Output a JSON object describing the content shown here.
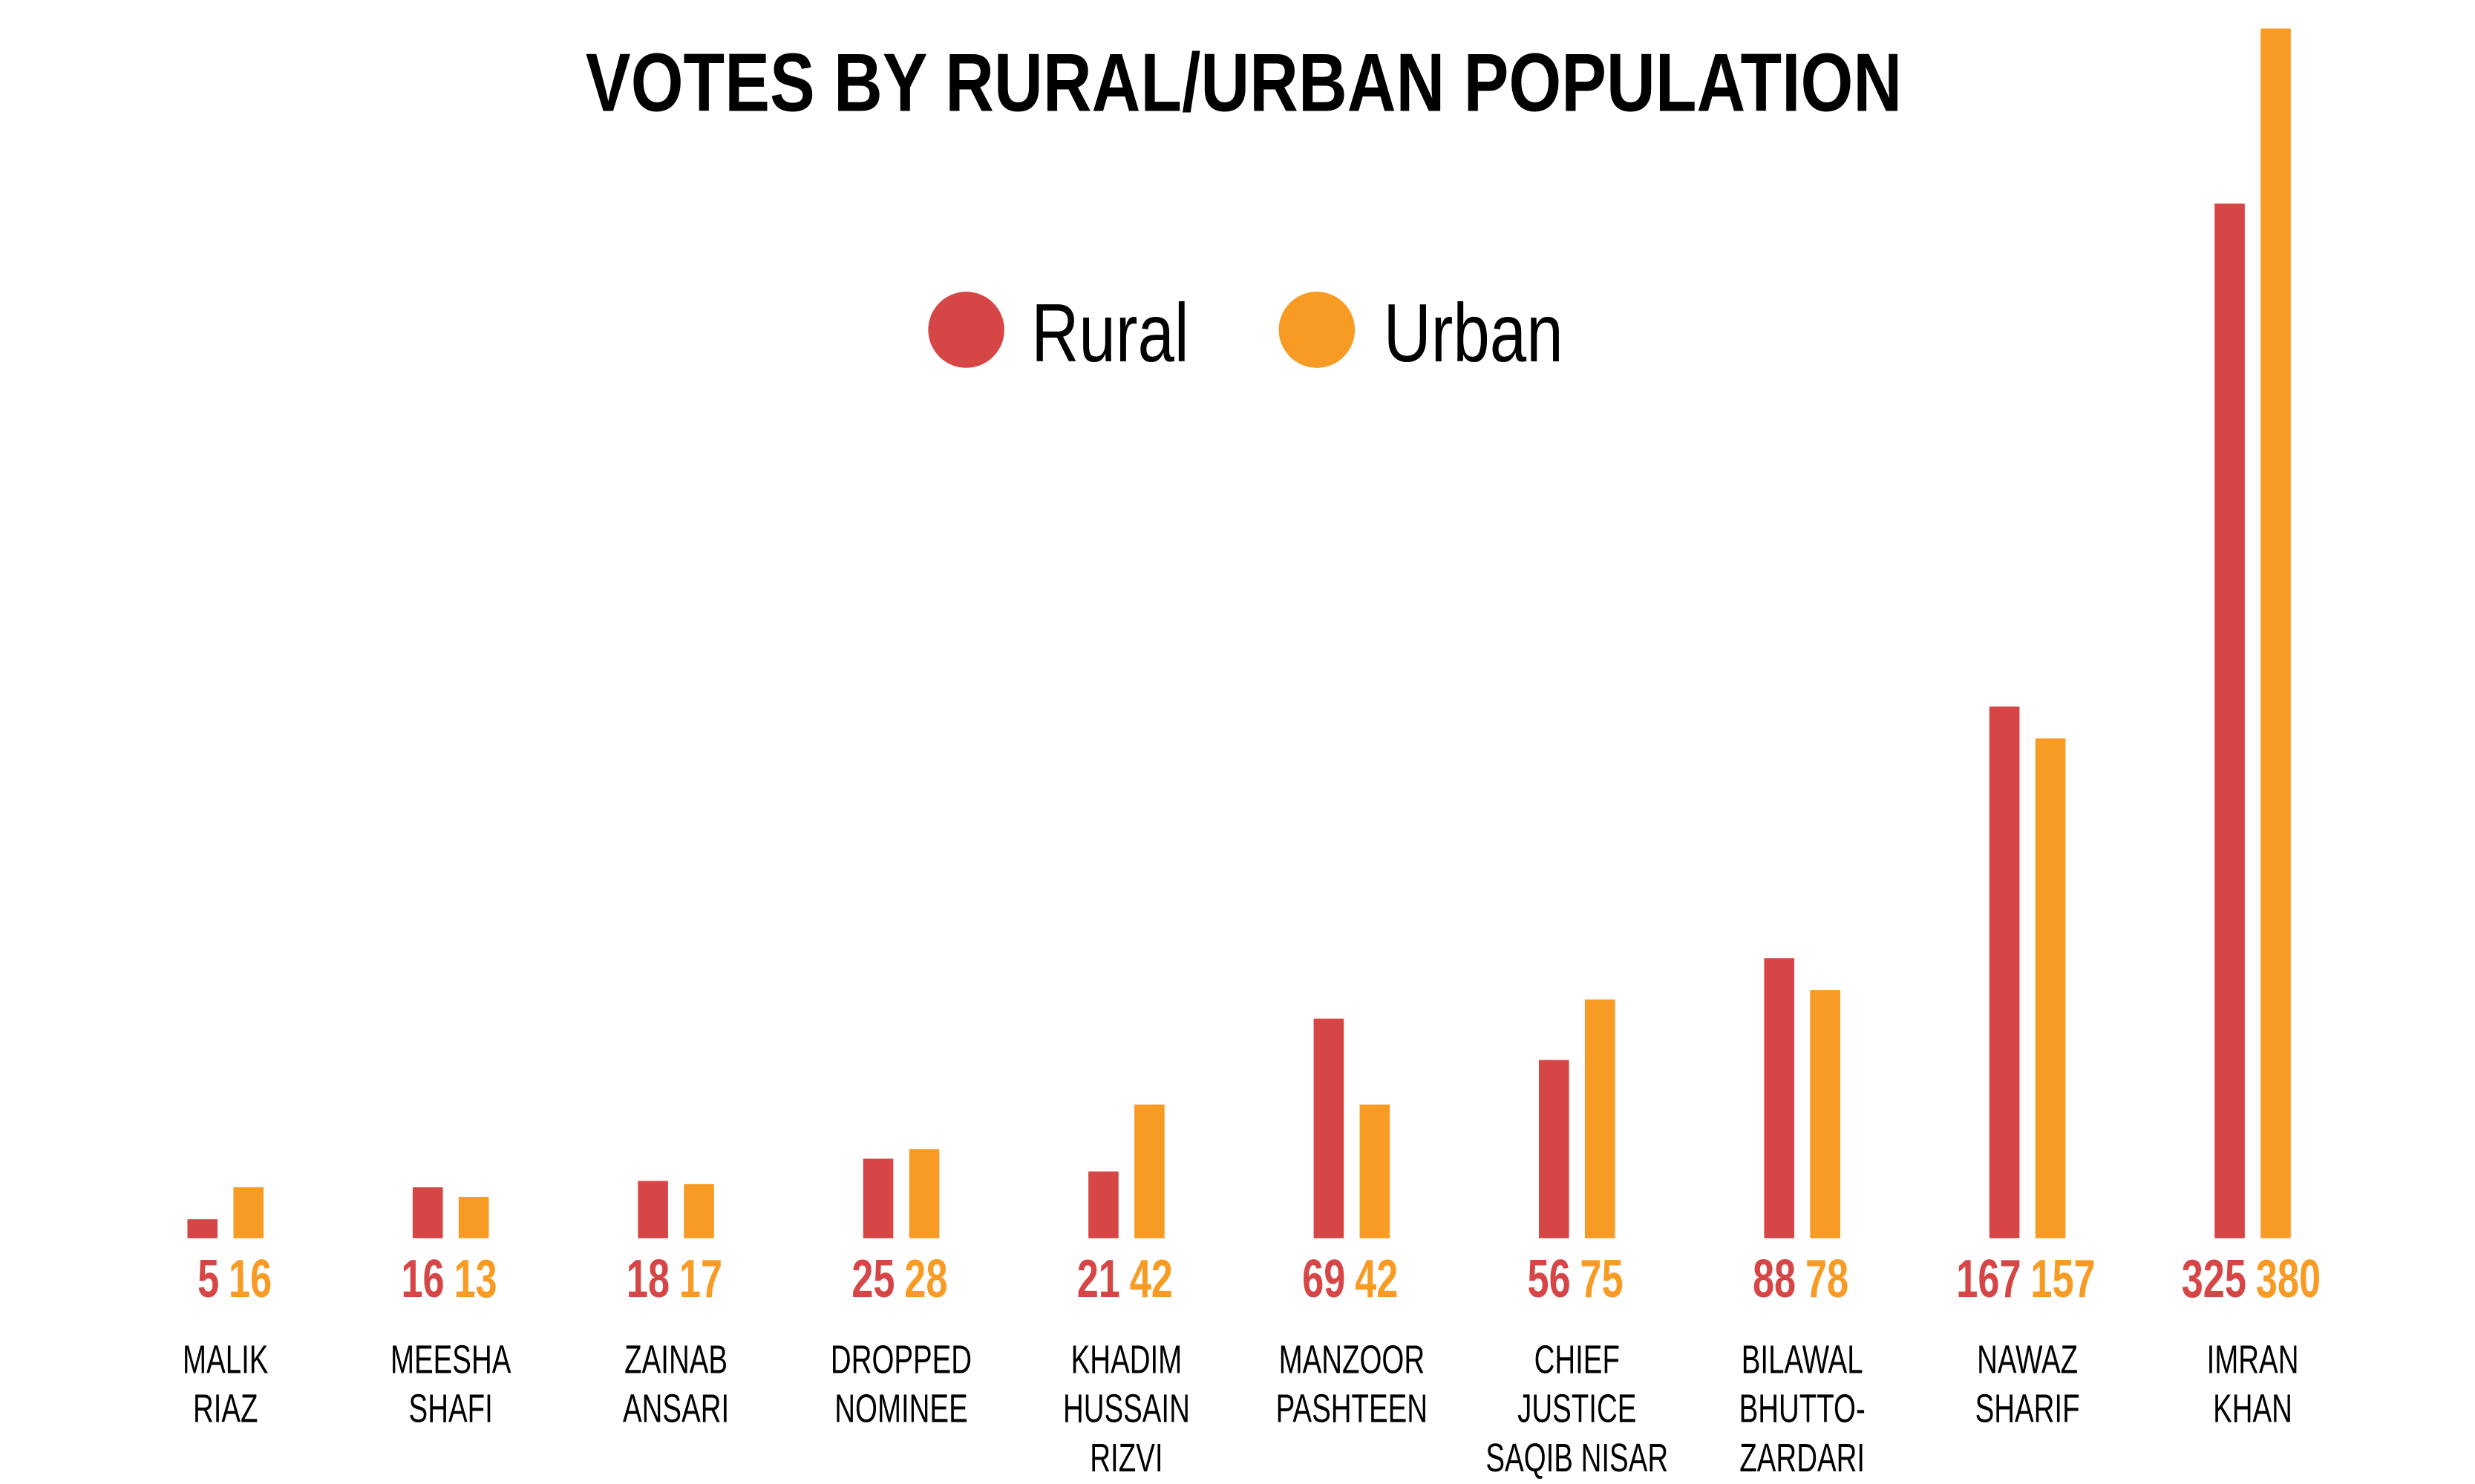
{
  "chart_data": {
    "type": "bar",
    "title": "VOTES BY RURAL/URBAN POPULATION",
    "xlabel": "",
    "ylabel": "",
    "legend_position": "top-center",
    "grid": false,
    "categories": [
      [
        "MALIK",
        "RIAZ"
      ],
      [
        "MEESHA",
        "SHAFI"
      ],
      [
        "ZAINAB",
        "ANSARI"
      ],
      [
        "DROPPED",
        "NOMINEE"
      ],
      [
        "KHADIM",
        "HUSSAIN",
        "RIZVI"
      ],
      [
        "MANZOOR",
        "PASHTEEN"
      ],
      [
        "CHIEF",
        "JUSTICE",
        "SAQIB NISAR"
      ],
      [
        "BILAWAL",
        "BHUTTO-",
        "ZARDARI"
      ],
      [
        "NAWAZ",
        "SHARIF"
      ],
      [
        "IMRAN",
        "KHAN"
      ]
    ],
    "series": [
      {
        "name": "Rural",
        "color": "#d64646",
        "values": [
          5,
          16,
          18,
          25,
          21,
          69,
          56,
          88,
          167,
          325
        ]
      },
      {
        "name": "Urban",
        "color": "#f89b24",
        "values": [
          16,
          13,
          17,
          28,
          42,
          42,
          75,
          78,
          157,
          380
        ]
      }
    ],
    "ylim": [
      0,
      380
    ]
  }
}
